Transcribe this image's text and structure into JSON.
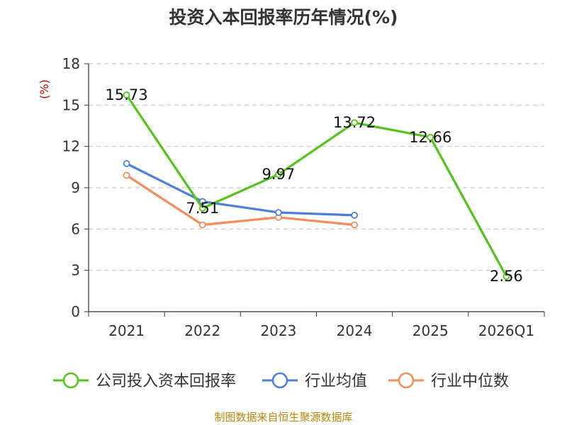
{
  "chart_data": {
    "type": "line",
    "title": "投资入本回报率历年情况(%)",
    "ylabel": "(%)",
    "xlabel": "",
    "categories": [
      "2021",
      "2022",
      "2023",
      "2024",
      "2025",
      "2026Q1"
    ],
    "ylim": [
      0,
      18
    ],
    "yticks": [
      0,
      3,
      6,
      9,
      12,
      15,
      18
    ],
    "grid": "horizontal-dashed",
    "legend_position": "bottom",
    "series": [
      {
        "name": "公司投入资本回报率",
        "color": "#52c41a",
        "values": [
          15.73,
          7.51,
          9.97,
          13.72,
          12.66,
          2.56
        ],
        "labels": [
          "15.73",
          "7.51",
          "9.97",
          "13.72",
          "12.66",
          "2.56"
        ]
      },
      {
        "name": "行业均值",
        "color": "#4a7fde",
        "values": [
          10.75,
          8.0,
          7.2,
          7.0,
          null,
          null
        ]
      },
      {
        "name": "行业中位数",
        "color": "#f58c5a",
        "values": [
          9.9,
          6.3,
          6.85,
          6.3,
          null,
          null
        ]
      }
    ],
    "source": "制图数据来自恒生聚源数据库"
  }
}
